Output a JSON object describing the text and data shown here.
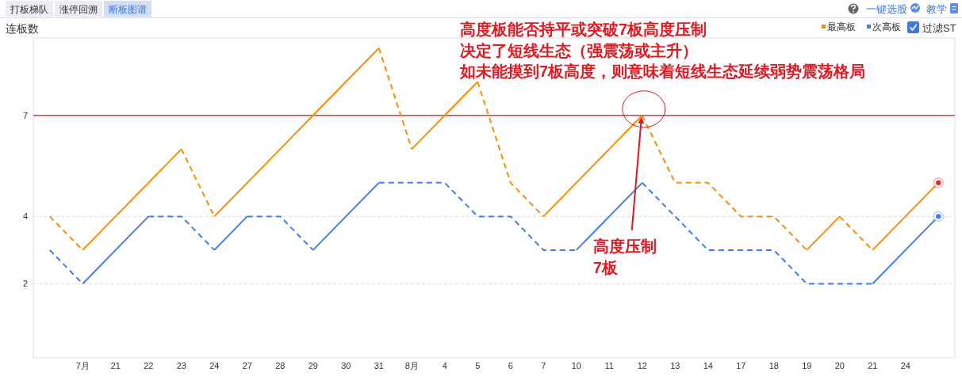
{
  "chart_data": {
    "type": "line",
    "ylabel": "连板数",
    "categories": [
      null,
      "7月",
      "21",
      "22",
      "23",
      "24",
      "27",
      "28",
      "29",
      "30",
      "31",
      "8月",
      "4",
      "5",
      "6",
      "7",
      "10",
      "11",
      "12",
      "13",
      "14",
      "17",
      "18",
      "19",
      "20",
      "21",
      "24",
      null
    ],
    "series": [
      {
        "name": "最高板",
        "color": "#ff8c00",
        "values": [
          4,
          3,
          4,
          5,
          6,
          4,
          5,
          6,
          7,
          8,
          9,
          6,
          7,
          8,
          5,
          4,
          5,
          6,
          7,
          5,
          5,
          4,
          4,
          3,
          4,
          3,
          4,
          5
        ],
        "line_style": [
          "dashed",
          "solid",
          "solid",
          "solid",
          "dashed",
          "solid",
          "solid",
          "solid",
          "solid",
          "solid",
          "dashed",
          "solid",
          "solid",
          "dashed",
          "dashed",
          "solid",
          "solid",
          "solid",
          "dashed",
          "dashed",
          "dashed",
          "dashed",
          "dashed",
          "solid",
          "dashed",
          "solid",
          "solid"
        ]
      },
      {
        "name": "次高板",
        "color": "#3d7ef5",
        "values": [
          3,
          2,
          3,
          4,
          4,
          3,
          4,
          4,
          3,
          4,
          5,
          5,
          5,
          4,
          4,
          3,
          3,
          4,
          5,
          4,
          3,
          3,
          3,
          2,
          2,
          2,
          3,
          4
        ],
        "line_style": [
          "dashed",
          "solid",
          "solid",
          "dashed",
          "dashed",
          "solid",
          "dashed",
          "dashed",
          "solid",
          "solid",
          "dashed",
          "dashed",
          "dashed",
          "dashed",
          "dashed",
          "dashed",
          "solid",
          "solid",
          "dashed",
          "dashed",
          "dashed",
          "dashed",
          "dashed",
          "dashed",
          "dashed",
          "solid",
          "solid"
        ]
      },
      {
        "type": "scatter",
        "color": "#f5222d",
        "marker": "circle",
        "values": [
          null,
          null,
          null,
          null,
          null,
          null,
          null,
          null,
          null,
          null,
          null,
          null,
          null,
          null,
          null,
          null,
          null,
          null,
          null,
          null,
          null,
          null,
          null,
          null,
          null,
          null,
          null,
          5
        ]
      },
      {
        "type": "scatter",
        "color": "#3d7ef5",
        "marker": "circle",
        "values": [
          null,
          null,
          null,
          null,
          null,
          null,
          null,
          null,
          null,
          null,
          null,
          null,
          null,
          null,
          null,
          null,
          null,
          null,
          null,
          null,
          null,
          null,
          null,
          null,
          null,
          null,
          null,
          4
        ]
      }
    ],
    "ylim": [
      -0.2,
      9.3
    ],
    "yticks": [
      2,
      4,
      7
    ],
    "grid": "y",
    "legend": "top right",
    "ref_lines": [
      {
        "axis": "y",
        "value": 7,
        "color": "#e8323c"
      }
    ],
    "annotations": [
      "打板梯队",
      "涨停回溯",
      "断板图谱",
      "一键选股",
      "教学",
      "过滤ST",
      "高度板能否持平或突破7板高度压制",
      "决定了短线生态（强震荡或主升）",
      "如未能摸到7板高度，则意味着短线生态延续弱势震荡格局",
      {
        "text": "高度压制",
        "x": "12",
        "y": 7
      },
      "7板"
    ]
  }
}
